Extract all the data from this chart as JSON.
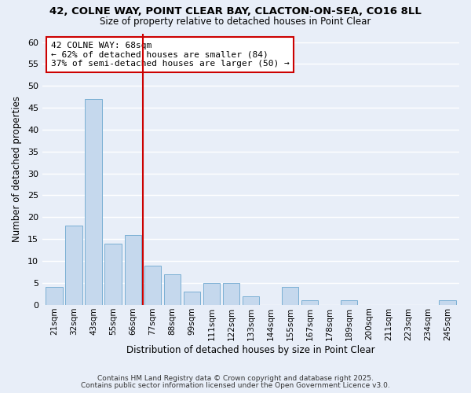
{
  "title": "42, COLNE WAY, POINT CLEAR BAY, CLACTON-ON-SEA, CO16 8LL",
  "subtitle": "Size of property relative to detached houses in Point Clear",
  "xlabel": "Distribution of detached houses by size in Point Clear",
  "ylabel": "Number of detached properties",
  "categories": [
    "21sqm",
    "32sqm",
    "43sqm",
    "55sqm",
    "66sqm",
    "77sqm",
    "88sqm",
    "99sqm",
    "111sqm",
    "122sqm",
    "133sqm",
    "144sqm",
    "155sqm",
    "167sqm",
    "178sqm",
    "189sqm",
    "200sqm",
    "211sqm",
    "223sqm",
    "234sqm",
    "245sqm"
  ],
  "values": [
    4,
    18,
    47,
    14,
    16,
    9,
    7,
    3,
    5,
    5,
    2,
    0,
    4,
    1,
    0,
    1,
    0,
    0,
    0,
    0,
    1
  ],
  "bar_color": "#c5d8ed",
  "bar_edge_color": "#7aafd4",
  "background_color": "#e8eef8",
  "grid_color": "#ffffff",
  "vline_x": 4.5,
  "vline_color": "#cc0000",
  "annotation_line1": "42 COLNE WAY: 68sqm",
  "annotation_line2": "← 62% of detached houses are smaller (84)",
  "annotation_line3": "37% of semi-detached houses are larger (50) →",
  "ylim": [
    0,
    62
  ],
  "yticks": [
    0,
    5,
    10,
    15,
    20,
    25,
    30,
    35,
    40,
    45,
    50,
    55,
    60
  ],
  "footnote1": "Contains HM Land Registry data © Crown copyright and database right 2025.",
  "footnote2": "Contains public sector information licensed under the Open Government Licence v3.0."
}
